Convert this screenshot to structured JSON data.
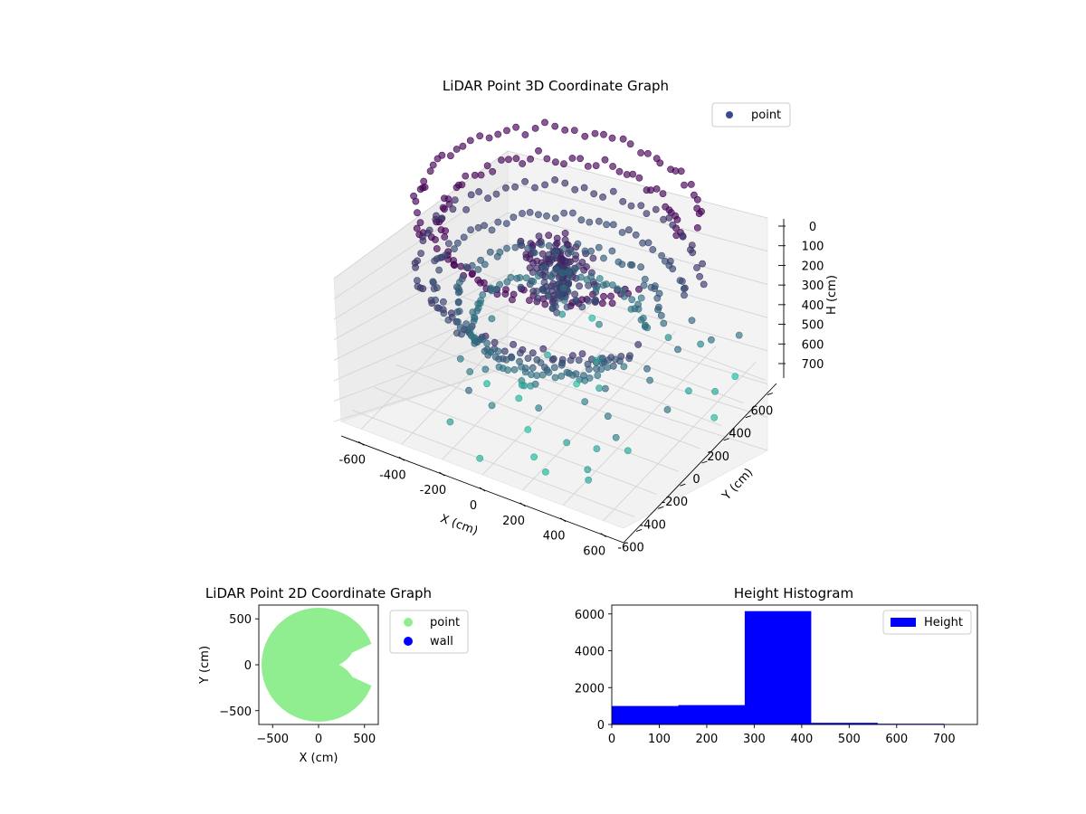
{
  "chart_data": [
    {
      "type": "scatter",
      "subtype": "3d",
      "title": "LiDAR Point 3D Coordinate Graph",
      "xlabel": "X (cm)",
      "ylabel": "Y (cm)",
      "zlabel": "H (cm)",
      "xticks": [
        -600,
        -400,
        -200,
        0,
        200,
        400,
        600
      ],
      "yticks": [
        -600,
        -400,
        -200,
        0,
        200,
        400,
        600
      ],
      "zticks": [
        0,
        100,
        200,
        300,
        400,
        500,
        600,
        700
      ],
      "xlim": [
        -700,
        700
      ],
      "ylim": [
        -700,
        700
      ],
      "zlim": [
        0,
        750
      ],
      "z_inverted": true,
      "grid": true,
      "colormap": "viridis",
      "legend": {
        "location": "top-right",
        "entries": [
          {
            "label": "point",
            "color": "#3b4a8c"
          }
        ]
      },
      "series": [
        {
          "name": "point",
          "structure": "concentric scan rings around origin, dense cluster near center at height ~350",
          "rings": [
            {
              "radius": 620,
              "h": 150
            },
            {
              "radius": 520,
              "h": 200
            },
            {
              "radius": 620,
              "h": 340
            },
            {
              "radius": 540,
              "h": 400
            },
            {
              "radius": 450,
              "h": 460
            },
            {
              "radius": 380,
              "h": 520
            }
          ],
          "center_cluster": {
            "radius": 180,
            "h_range": [
              250,
              420
            ]
          },
          "outliers_h_range": [
            480,
            760
          ]
        }
      ]
    },
    {
      "type": "scatter",
      "title": "LiDAR Point 2D Coordinate Graph",
      "xlabel": "X (cm)",
      "ylabel": "Y (cm)",
      "xticks": [
        -500,
        0,
        500
      ],
      "yticks": [
        -500,
        0,
        500
      ],
      "xlim": [
        -650,
        650
      ],
      "ylim": [
        -650,
        650
      ],
      "legend": {
        "location": "outside-right",
        "entries": [
          {
            "label": "point",
            "color": "#90ee90"
          },
          {
            "label": "wall",
            "color": "#0000ff"
          }
        ]
      },
      "series": [
        {
          "name": "point",
          "color": "#90ee90",
          "shape": "disc of radius ~620 cm with a notch opening toward +X"
        },
        {
          "name": "wall",
          "color": "#0000ff",
          "points": []
        }
      ]
    },
    {
      "type": "bar",
      "subtype": "histogram",
      "title": "Height Histogram",
      "xlabel": "",
      "ylabel": "",
      "bin_edges": [
        0,
        140,
        280,
        420,
        560,
        700
      ],
      "values": [
        1000,
        1050,
        6150,
        90,
        40
      ],
      "xticks": [
        0,
        100,
        200,
        300,
        400,
        500,
        600,
        700
      ],
      "yticks": [
        0,
        2000,
        4000,
        6000
      ],
      "xlim": [
        0,
        770
      ],
      "ylim": [
        0,
        6480
      ],
      "color": "#0000ff",
      "legend": {
        "location": "top-right",
        "entries": [
          {
            "label": "Height",
            "color": "#0000ff"
          }
        ]
      }
    }
  ]
}
